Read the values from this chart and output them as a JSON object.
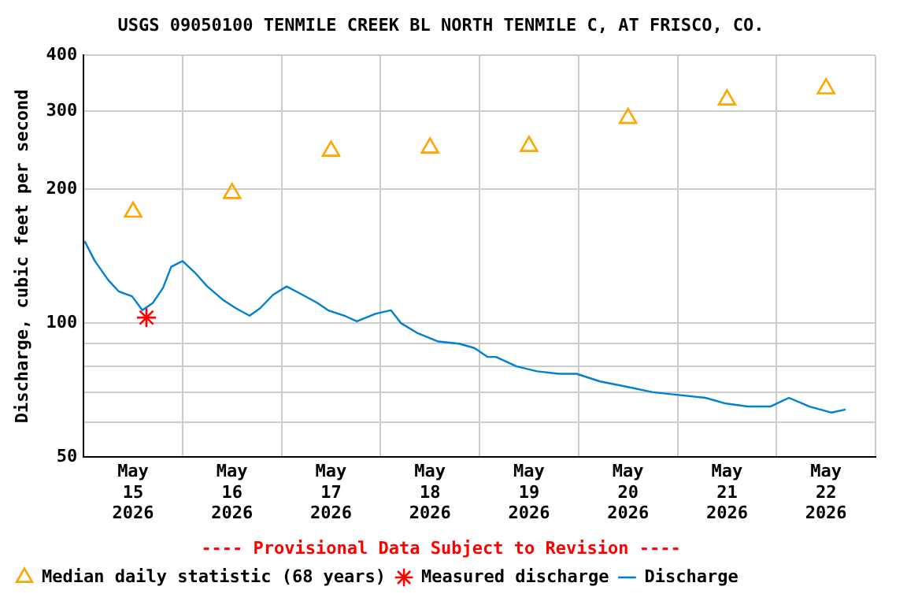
{
  "chart_data": {
    "type": "line",
    "title": "USGS 09050100 TENMILE CREEK BL NORTH TENMILE C, AT FRISCO, CO.",
    "ylabel": "Discharge, cubic feet per second",
    "xlim": [
      "2026-05-15",
      "2026-05-23"
    ],
    "xticks": [
      {
        "value": "2026-05-15",
        "label": null
      },
      {
        "value": "2026-05-15T12:00",
        "label": "May 15 2026"
      },
      {
        "value": "2026-05-16",
        "label": null
      },
      {
        "value": "2026-05-16T12:00",
        "label": "May 16 2026"
      },
      {
        "value": "2026-05-17",
        "label": null
      },
      {
        "value": "2026-05-17T12:00",
        "label": "May 17 2026"
      },
      {
        "value": "2026-05-18",
        "label": null
      },
      {
        "value": "2026-05-18T12:00",
        "label": "May 18 2026"
      },
      {
        "value": "2026-05-19",
        "label": null
      },
      {
        "value": "2026-05-19T12:00",
        "label": "May 19 2026"
      },
      {
        "value": "2026-05-20",
        "label": null
      },
      {
        "value": "2026-05-20T12:00",
        "label": "May 20 2026"
      },
      {
        "value": "2026-05-21",
        "label": null
      },
      {
        "value": "2026-05-21T12:00",
        "label": "May 21 2026"
      },
      {
        "value": "2026-05-22",
        "label": null
      },
      {
        "value": "2026-05-22T12:00",
        "label": "May 22 2026"
      },
      {
        "value": "2026-05-23",
        "label": null
      }
    ],
    "ylim": [
      50,
      400
    ],
    "log": true,
    "yticks": [
      50,
      {
        "value": 60,
        "label": null
      },
      {
        "value": 70,
        "label": null
      },
      {
        "value": 80,
        "label": null
      },
      {
        "value": 90,
        "label": null
      },
      100,
      200,
      300,
      400
    ],
    "grid": true,
    "legend": "bottom",
    "annotations": [
      "---- Provisional Data Subject to Revision ----"
    ],
    "series": [
      {
        "name": "Median daily statistic (68 years)",
        "type": "scatter",
        "marker": "triangle",
        "color": "#ffa500",
        "x": [
          "2026-05-15T12:00",
          "2026-05-16T12:00",
          "2026-05-17T12:00",
          "2026-05-18T12:00",
          "2026-05-19T12:00",
          "2026-05-20T12:00",
          "2026-05-21T12:00",
          "2026-05-22T12:00"
        ],
        "values": [
          178,
          196,
          244,
          248,
          250,
          289,
          318,
          337
        ]
      },
      {
        "name": "Measured discharge",
        "type": "scatter",
        "marker": "cross",
        "color": "#ff0000",
        "x": [
          "2026-05-15T15:15"
        ],
        "values": [
          103
        ]
      },
      {
        "name": "Discharge",
        "type": "line",
        "marker": "none",
        "line_style": "solid",
        "color": "#0080d0",
        "x": [
          "2026-05-15T00:15",
          "2026-05-15T02:45",
          "2026-05-15T06:00",
          "2026-05-15T08:30",
          "2026-05-15T11:45",
          "2026-05-15T14:15",
          "2026-05-15T16:45",
          "2026-05-15T19:15",
          "2026-05-15T21:15",
          "2026-05-16T00:00",
          "2026-05-16T03:00",
          "2026-05-16T06:00",
          "2026-05-16T09:45",
          "2026-05-16T13:00",
          "2026-05-16T16:15",
          "2026-05-16T18:45",
          "2026-05-16T22:00",
          "2026-05-17T01:15",
          "2026-05-17T05:00",
          "2026-05-17T08:45",
          "2026-05-17T11:15",
          "2026-05-17T15:15",
          "2026-05-17T18:15",
          "2026-05-17T22:45",
          "2026-05-18T02:30",
          "2026-05-18T05:00",
          "2026-05-18T09:00",
          "2026-05-18T14:00",
          "2026-05-18T19:00",
          "2026-05-18T22:45",
          "2026-05-19T02:00",
          "2026-05-19T04:00",
          "2026-05-19T09:00",
          "2026-05-19T14:00",
          "2026-05-19T19:15",
          "2026-05-19T23:30",
          "2026-05-20T05:15",
          "2026-05-20T11:45",
          "2026-05-20T18:00",
          "2026-05-21T00:15",
          "2026-05-21T06:45",
          "2026-05-21T11:45",
          "2026-05-21T17:00",
          "2026-05-21T22:30",
          "2026-05-22T03:00",
          "2026-05-22T08:00",
          "2026-05-22T13:15",
          "2026-05-22T16:45"
        ],
        "values": [
          153,
          138,
          125,
          118,
          115,
          107,
          111,
          120,
          134,
          138,
          130,
          121,
          113,
          108,
          104,
          108,
          116,
          121,
          116,
          111,
          107,
          104,
          101,
          105,
          107,
          100,
          95,
          91,
          90,
          88,
          84,
          84,
          80,
          78,
          77,
          77,
          74,
          72,
          70,
          69,
          68,
          66,
          65,
          65,
          68,
          65,
          63,
          64
        ]
      }
    ]
  }
}
